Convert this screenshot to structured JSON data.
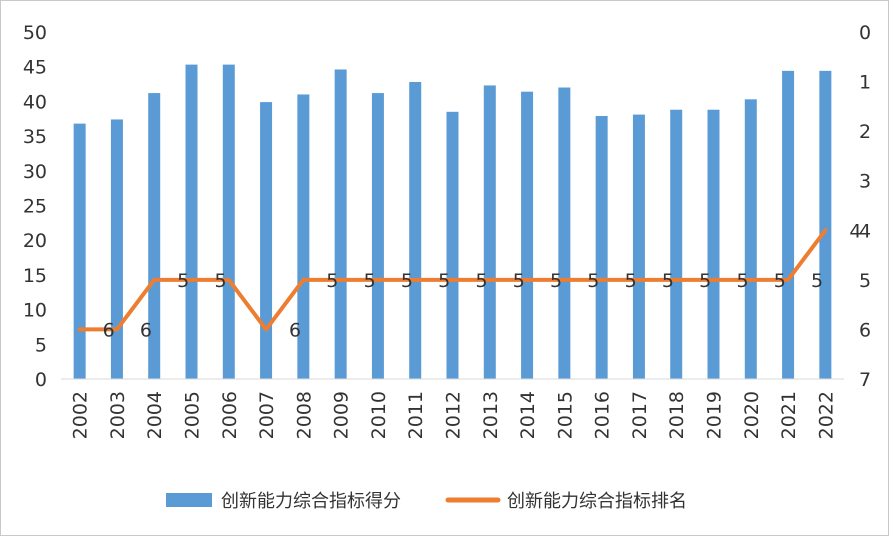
{
  "chart_data": {
    "type": "bar+line",
    "categories": [
      "2002",
      "2003",
      "2004",
      "2005",
      "2006",
      "2007",
      "2008",
      "2009",
      "2010",
      "2011",
      "2012",
      "2013",
      "2014",
      "2015",
      "2016",
      "2017",
      "2018",
      "2019",
      "2020",
      "2021",
      "2022"
    ],
    "series": [
      {
        "name": "创新能力综合指标得分",
        "type": "bar",
        "axis": "left",
        "color": "#5b9bd5",
        "values": [
          36.8,
          37.4,
          41.2,
          45.3,
          45.3,
          39.9,
          41.0,
          44.6,
          41.2,
          42.8,
          38.5,
          42.3,
          41.4,
          42.0,
          37.9,
          38.1,
          38.8,
          38.8,
          40.3,
          44.4,
          44.4
        ]
      },
      {
        "name": "创新能力综合指标排名",
        "type": "line",
        "axis": "right",
        "color": "#ed7d31",
        "values": [
          6,
          6,
          5,
          5,
          5,
          6,
          5,
          5,
          5,
          5,
          5,
          5,
          5,
          5,
          5,
          5,
          5,
          5,
          5,
          5,
          4
        ],
        "data_labels": [
          "6",
          "6",
          "5",
          "5",
          "",
          "6",
          "5",
          "5",
          "5",
          "5",
          "5",
          "5",
          "5",
          "5",
          "5",
          "5",
          "5",
          "5",
          "5",
          "5",
          "4"
        ]
      }
    ],
    "y_left": {
      "min": 0,
      "max": 50,
      "ticks": [
        "0",
        "5",
        "10",
        "15",
        "20",
        "25",
        "30",
        "35",
        "40",
        "45",
        "50"
      ]
    },
    "y_right": {
      "min": 0,
      "max": 7,
      "reversed": true,
      "ticks": [
        "0",
        "1",
        "2",
        "3",
        "4",
        "5",
        "6",
        "7"
      ]
    },
    "grid": false,
    "legend_position": "bottom",
    "title": "",
    "xlabel": "",
    "ylabel": ""
  }
}
